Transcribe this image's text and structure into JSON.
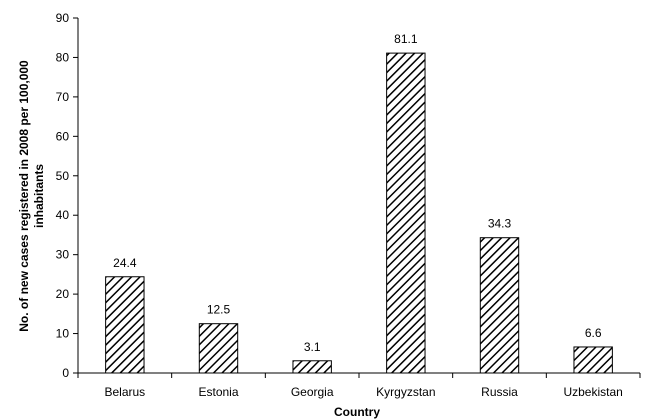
{
  "chart_data": {
    "type": "bar",
    "categories": [
      "Belarus",
      "Estonia",
      "Georgia",
      "Kyrgyzstan",
      "Russia",
      "Uzbekistan"
    ],
    "values": [
      24.4,
      12.5,
      3.1,
      81.1,
      34.3,
      6.6
    ],
    "data_labels": [
      "24.4",
      "12.5",
      "3.1",
      "81.1",
      "34.3",
      "6.6"
    ],
    "xlabel": "Country",
    "ylabel_lines": [
      "No. of new cases registered in 2008 per 100,000",
      "inhabitants"
    ],
    "ylim": [
      0,
      90
    ],
    "yticks": [
      "0",
      "10",
      "20",
      "30",
      "40",
      "50",
      "60",
      "70",
      "80",
      "90"
    ],
    "grid": false,
    "bar_fill": "hatched diagonal",
    "colors": {
      "bar_stroke": "#000000",
      "hatch": "#000000",
      "background": "#ffffff"
    }
  }
}
